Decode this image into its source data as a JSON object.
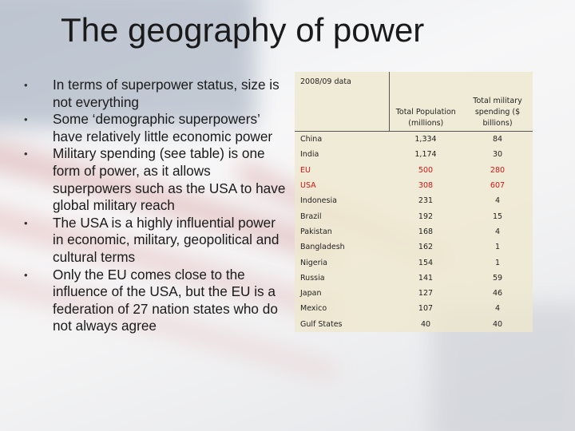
{
  "slide": {
    "title": "The geography of power",
    "bullets": [
      "In terms of superpower status, size is not everything",
      "Some ‘demographic superpowers’ have relatively little economic power",
      "Military spending (see table) is one form of power, as it allows superpowers such as the USA to have global military reach",
      "The USA is a highly influential power in economic, military, geopolitical and cultural terms",
      "Only the EU comes close to the influence of the USA, but the EU is a federation of 27 nation states who do not always agree"
    ],
    "bullet_glyph": "•"
  },
  "table": {
    "corner_label": "2008/09 data",
    "headers": [
      "Total Population (millions)",
      "Total military spending ($ billions)"
    ],
    "highlight_color": "#d11414",
    "rows": [
      {
        "country": "China",
        "population": "1,334",
        "military": "84",
        "highlight": false
      },
      {
        "country": "India",
        "population": "1,174",
        "military": "30",
        "highlight": false
      },
      {
        "country": "EU",
        "population": "500",
        "military": "280",
        "highlight": true
      },
      {
        "country": "USA",
        "population": "308",
        "military": "607",
        "highlight": true
      },
      {
        "country": "Indonesia",
        "population": "231",
        "military": "4",
        "highlight": false
      },
      {
        "country": "Brazil",
        "population": "192",
        "military": "15",
        "highlight": false
      },
      {
        "country": "Pakistan",
        "population": "168",
        "military": "4",
        "highlight": false
      },
      {
        "country": "Bangladesh",
        "population": "162",
        "military": "1",
        "highlight": false
      },
      {
        "country": "Nigeria",
        "population": "154",
        "military": "1",
        "highlight": false
      },
      {
        "country": "Russia",
        "population": "141",
        "military": "59",
        "highlight": false
      },
      {
        "country": "Japan",
        "population": "127",
        "military": "46",
        "highlight": false
      },
      {
        "country": "Mexico",
        "population": "107",
        "military": "4",
        "highlight": false
      },
      {
        "country": "Gulf States",
        "population": "40",
        "military": "40",
        "highlight": false
      }
    ]
  }
}
